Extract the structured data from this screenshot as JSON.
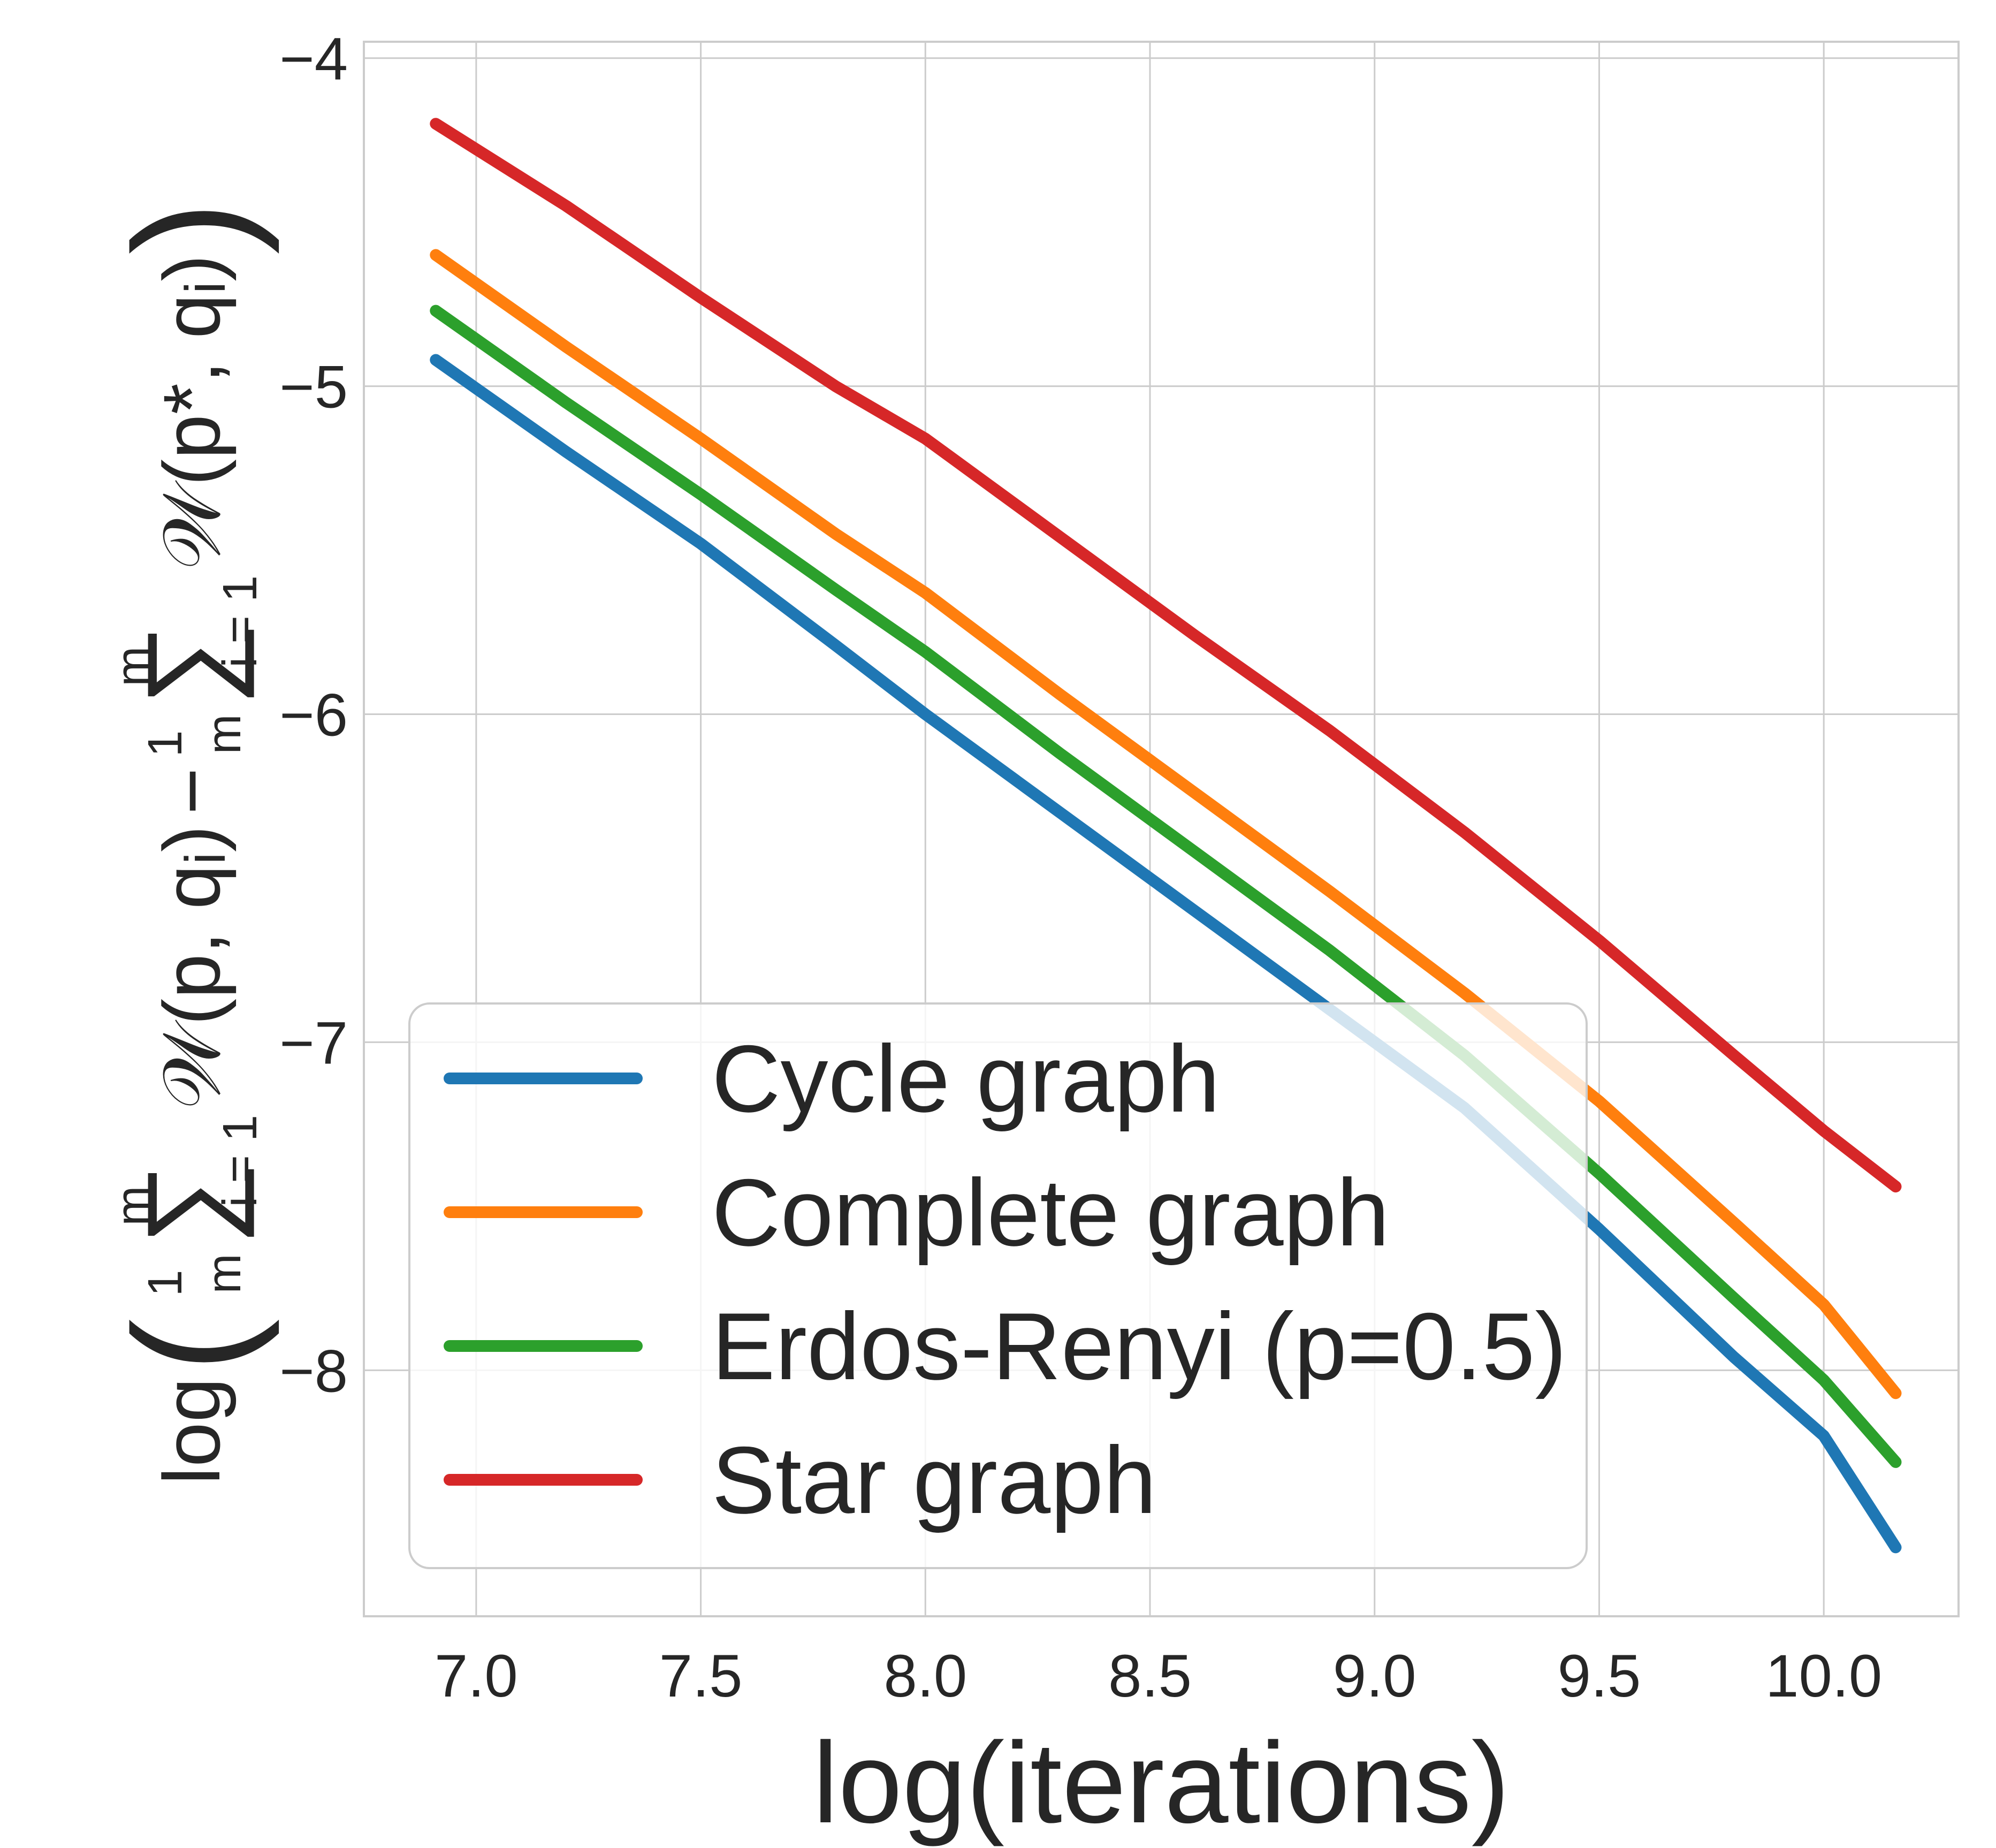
{
  "chart_data": {
    "type": "line",
    "xlabel": "log(iterations)",
    "ylabel": "log(1/m ∑_{i=1}^m 𝒲(p, qᵢ) − 1/m ∑_{i=1}^m 𝒲(p*, qᵢ))",
    "ylabel_parts": {
      "log": "log",
      "frac_num": "1",
      "frac_den": "m",
      "sum_top": "m",
      "sum_bottom": "i = 1",
      "term1": "𝒲(p, qᵢ)",
      "minus": "−",
      "term2": "𝒲(p*, qᵢ)",
      "sum": "∑"
    },
    "xlim": [
      6.75,
      10.3
    ],
    "ylim": [
      -8.75,
      -3.95
    ],
    "x_ticks": [
      7.0,
      7.5,
      8.0,
      8.5,
      9.0,
      9.5,
      10.0
    ],
    "x_tick_labels": [
      "7.0",
      "7.5",
      "8.0",
      "8.5",
      "9.0",
      "9.5",
      "10.0"
    ],
    "y_ticks": [
      -4,
      -5,
      -6,
      -7,
      -8
    ],
    "y_tick_labels": [
      "−4",
      "−5",
      "−6",
      "−7",
      "−8"
    ],
    "grid": true,
    "legend_position": "lower-left",
    "x": [
      6.91,
      7.2,
      7.5,
      7.8,
      8.0,
      8.3,
      8.6,
      8.9,
      9.2,
      9.5,
      9.8,
      10.0,
      10.16
    ],
    "series": [
      {
        "name": "Cycle graph",
        "color": "#1f77b4",
        "values": [
          -4.92,
          -5.2,
          -5.48,
          -5.79,
          -6.0,
          -6.3,
          -6.6,
          -6.9,
          -7.2,
          -7.57,
          -7.96,
          -8.2,
          -8.54
        ]
      },
      {
        "name": "Complete graph",
        "color": "#ff7f0e",
        "values": [
          -4.6,
          -4.88,
          -5.16,
          -5.45,
          -5.63,
          -5.94,
          -6.24,
          -6.54,
          -6.85,
          -7.18,
          -7.55,
          -7.8,
          -8.07
        ]
      },
      {
        "name": "Erdos-Renyi (p=0.5)",
        "color": "#2ca02c",
        "values": [
          -4.77,
          -5.05,
          -5.33,
          -5.62,
          -5.81,
          -6.12,
          -6.42,
          -6.72,
          -7.04,
          -7.4,
          -7.78,
          -8.03,
          -8.28
        ]
      },
      {
        "name": "Star graph",
        "color": "#d62728",
        "values": [
          -4.2,
          -4.45,
          -4.73,
          -5.0,
          -5.16,
          -5.46,
          -5.76,
          -6.05,
          -6.36,
          -6.69,
          -7.04,
          -7.27,
          -7.44
        ]
      }
    ]
  }
}
